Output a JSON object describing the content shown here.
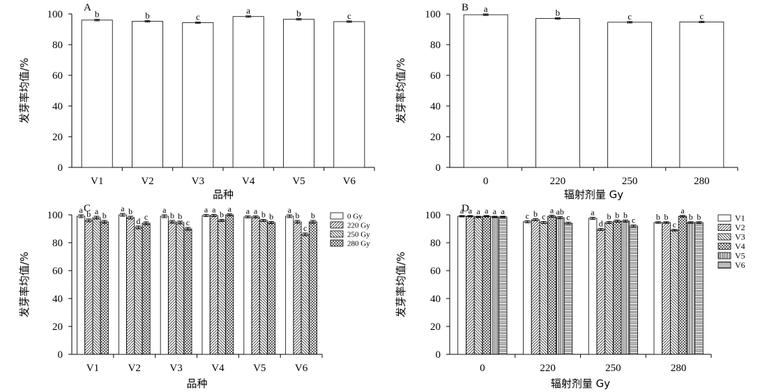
{
  "chart_data": [
    {
      "panel_label": "A",
      "type": "bar",
      "xlabel": "品种",
      "ylabel": "发芽率均值/%",
      "ylim": [
        0,
        100
      ],
      "yticks": [
        "0",
        "20",
        "40",
        "60",
        "80",
        "100"
      ],
      "categories": [
        "V1",
        "V2",
        "V3",
        "V4",
        "V5",
        "V6"
      ],
      "series": [
        {
          "values": [
            96,
            95.2,
            94.3,
            98.3,
            96.5,
            95
          ],
          "errors": [
            0.5,
            0.5,
            0.5,
            0.5,
            0.5,
            0.5
          ],
          "letters": [
            "b",
            "b",
            "c",
            "a",
            "b",
            "c"
          ]
        }
      ]
    },
    {
      "panel_label": "B",
      "type": "bar",
      "xlabel": "辐射剂量 Gy",
      "ylabel": "发芽率均值/%",
      "ylim": [
        0,
        100
      ],
      "yticks": [
        "0",
        "20",
        "40",
        "60",
        "80",
        "100"
      ],
      "categories": [
        "0",
        "220",
        "250",
        "280"
      ],
      "series": [
        {
          "values": [
            99.5,
            97,
            94.6,
            94.8
          ],
          "errors": [
            0.5,
            0.5,
            0.5,
            0.5
          ],
          "letters": [
            "a",
            "b",
            "c",
            "c"
          ]
        }
      ]
    },
    {
      "panel_label": "C",
      "type": "bar",
      "xlabel": "品种",
      "ylabel": "发芽率均值/%",
      "ylim": [
        0,
        100
      ],
      "yticks": [
        "0",
        "20",
        "40",
        "60",
        "80",
        "100"
      ],
      "categories": [
        "V1",
        "V2",
        "V3",
        "V4",
        "V5",
        "V6"
      ],
      "legend_position": "top-right-outside",
      "series": [
        {
          "name": "0 Gy",
          "pattern": "blank",
          "values": [
            99,
            100,
            99,
            99.5,
            98.5,
            99
          ],
          "errors": [
            1,
            1,
            1,
            0.8,
            0.8,
            1
          ],
          "letters": [
            "a",
            "a",
            "a",
            "a",
            "a",
            "a"
          ]
        },
        {
          "name": "220 Gy",
          "pattern": "diag-right",
          "values": [
            96,
            98,
            95,
            99.5,
            98.5,
            95
          ],
          "errors": [
            1,
            1,
            1,
            0.8,
            0.8,
            1
          ],
          "letters": [
            "b",
            "b",
            "b",
            "a",
            "a",
            "b"
          ]
        },
        {
          "name": "250 Gy",
          "pattern": "diag-left",
          "values": [
            98,
            91,
            94.5,
            96,
            96,
            86
          ],
          "errors": [
            1,
            1,
            1,
            0.8,
            0.8,
            1
          ],
          "letters": [
            "a",
            "d",
            "b",
            "b",
            "b",
            "c"
          ]
        },
        {
          "name": "280 Gy",
          "pattern": "cross",
          "values": [
            95,
            94,
            90,
            100,
            94.5,
            95
          ],
          "errors": [
            1,
            1,
            1,
            0.8,
            0.8,
            1
          ],
          "letters": [
            "b",
            "c",
            "c",
            "a",
            "b",
            "b"
          ]
        }
      ]
    },
    {
      "panel_label": "D",
      "type": "bar",
      "xlabel": "辐射剂量 Gy",
      "ylabel": "发芽率均值/%",
      "ylim": [
        0,
        100
      ],
      "yticks": [
        "0",
        "20",
        "40",
        "60",
        "80",
        "100"
      ],
      "categories": [
        "0",
        "220",
        "250",
        "280"
      ],
      "legend_position": "top-right-outside",
      "series": [
        {
          "name": "V1",
          "pattern": "blank",
          "values": [
            99,
            95,
            97.5,
            94.5
          ],
          "errors": [
            0.5,
            0.8,
            0.8,
            0.6
          ],
          "letters": [
            "a",
            "c",
            "a",
            "b"
          ]
        },
        {
          "name": "V2",
          "pattern": "diag-right",
          "values": [
            99,
            96.5,
            89.5,
            94.5
          ],
          "errors": [
            0.5,
            0.8,
            0.8,
            0.6
          ],
          "letters": [
            "a",
            "b",
            "d",
            "b"
          ]
        },
        {
          "name": "V3",
          "pattern": "diag-left",
          "values": [
            98.5,
            94.5,
            94.5,
            89
          ],
          "errors": [
            0.5,
            0.8,
            0.8,
            0.6
          ],
          "letters": [
            "a",
            "c",
            "b",
            "c"
          ]
        },
        {
          "name": "V4",
          "pattern": "cross",
          "values": [
            99,
            99,
            95.5,
            99
          ],
          "errors": [
            0.5,
            0.8,
            0.8,
            0.6
          ],
          "letters": [
            "a",
            "a",
            "b",
            "a"
          ]
        },
        {
          "name": "V5",
          "pattern": "vertical",
          "values": [
            98.5,
            98,
            95.5,
            94.5
          ],
          "errors": [
            0.5,
            0.8,
            0.8,
            0.6
          ],
          "letters": [
            "a",
            "ab",
            "b",
            "b"
          ]
        },
        {
          "name": "V6",
          "pattern": "horizontal",
          "values": [
            98.5,
            94,
            92,
            94.5
          ],
          "errors": [
            0.5,
            0.8,
            0.8,
            0.6
          ],
          "letters": [
            "a",
            "c",
            "c",
            "b"
          ]
        }
      ]
    }
  ]
}
